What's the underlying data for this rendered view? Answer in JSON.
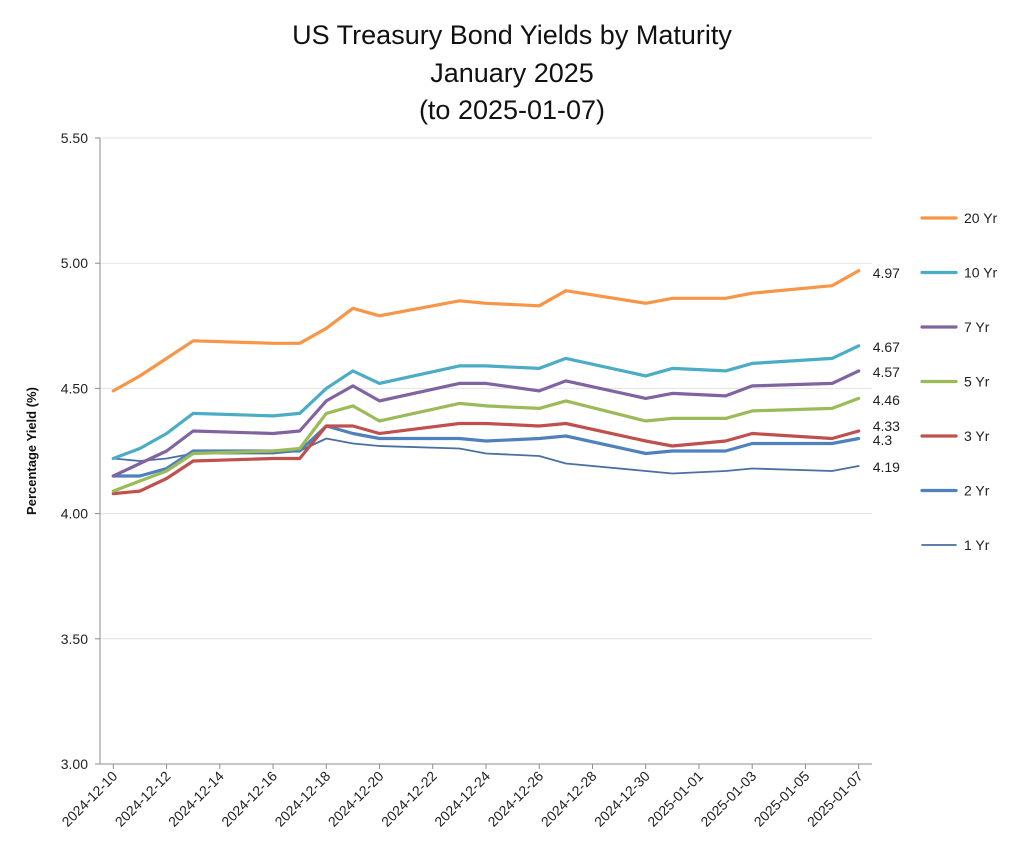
{
  "chart_data": {
    "type": "line",
    "title": [
      "US Treasury Bond Yields by Maturity",
      "January 2025",
      "(to 2025-01-07)"
    ],
    "ylabel": "Percentage Yield (%)",
    "xlabel": "",
    "ylim": [
      3.0,
      5.5
    ],
    "yticks": [
      "3.00",
      "3.50",
      "4.00",
      "4.50",
      "5.00",
      "5.50"
    ],
    "xlim": [
      "2024-12-10",
      "2025-01-08"
    ],
    "xticks": [
      "2024-12-10",
      "2024-12-12",
      "2024-12-14",
      "2024-12-16",
      "2024-12-18",
      "2024-12-20",
      "2024-12-22",
      "2024-12-24",
      "2024-12-26",
      "2024-12-28",
      "2024-12-30",
      "2025-01-01",
      "2025-01-03",
      "2025-01-05",
      "2025-01-07"
    ],
    "grid": "horizontal",
    "legend_position": "right",
    "x": [
      "2024-12-10",
      "2024-12-11",
      "2024-12-12",
      "2024-12-13",
      "2024-12-16",
      "2024-12-17",
      "2024-12-18",
      "2024-12-19",
      "2024-12-20",
      "2024-12-23",
      "2024-12-24",
      "2024-12-26",
      "2024-12-27",
      "2024-12-30",
      "2024-12-31",
      "2025-01-02",
      "2025-01-03",
      "2025-01-06",
      "2025-01-07"
    ],
    "series": [
      {
        "name": "20 Yr",
        "color": "#f79646",
        "width": 3.2,
        "end_label": "4.97",
        "values": [
          4.49,
          4.55,
          4.62,
          4.69,
          4.68,
          4.68,
          4.74,
          4.82,
          4.79,
          4.85,
          4.84,
          4.83,
          4.89,
          4.84,
          4.86,
          4.86,
          4.88,
          4.91,
          4.97
        ]
      },
      {
        "name": "10 Yr",
        "color": "#4bacc6",
        "width": 3.2,
        "end_label": "4.67",
        "values": [
          4.22,
          4.26,
          4.32,
          4.4,
          4.39,
          4.4,
          4.5,
          4.57,
          4.52,
          4.59,
          4.59,
          4.58,
          4.62,
          4.55,
          4.58,
          4.57,
          4.6,
          4.62,
          4.67
        ]
      },
      {
        "name": "7 Yr",
        "color": "#8064a2",
        "width": 3.2,
        "end_label": "4.57",
        "values": [
          4.15,
          4.2,
          4.25,
          4.33,
          4.32,
          4.33,
          4.45,
          4.51,
          4.45,
          4.52,
          4.52,
          4.49,
          4.53,
          4.46,
          4.48,
          4.47,
          4.51,
          4.52,
          4.57
        ]
      },
      {
        "name": "5 Yr",
        "color": "#9bbb59",
        "width": 3.2,
        "end_label": "4.46",
        "values": [
          4.09,
          4.13,
          4.17,
          4.24,
          4.25,
          4.26,
          4.4,
          4.43,
          4.37,
          4.44,
          4.43,
          4.42,
          4.45,
          4.37,
          4.38,
          4.38,
          4.41,
          4.42,
          4.46
        ]
      },
      {
        "name": "3 Yr",
        "color": "#c0504d",
        "width": 3.2,
        "end_label": "4.33",
        "values": [
          4.08,
          4.09,
          4.14,
          4.21,
          4.22,
          4.22,
          4.35,
          4.35,
          4.32,
          4.36,
          4.36,
          4.35,
          4.36,
          4.29,
          4.27,
          4.29,
          4.32,
          4.3,
          4.33
        ]
      },
      {
        "name": "2 Yr",
        "color": "#4f81bd",
        "width": 3.2,
        "end_label": "4.3",
        "values": [
          4.15,
          4.15,
          4.18,
          4.25,
          4.25,
          4.25,
          4.35,
          4.32,
          4.3,
          4.3,
          4.29,
          4.3,
          4.31,
          4.24,
          4.25,
          4.25,
          4.28,
          4.28,
          4.3
        ]
      },
      {
        "name": "1 Yr",
        "color": "#4a6fa1",
        "width": 1.8,
        "end_label": "4.19",
        "values": [
          4.22,
          4.21,
          4.22,
          4.24,
          4.24,
          4.25,
          4.3,
          4.28,
          4.27,
          4.26,
          4.24,
          4.23,
          4.2,
          4.17,
          4.16,
          4.17,
          4.18,
          4.17,
          4.19
        ]
      }
    ]
  }
}
